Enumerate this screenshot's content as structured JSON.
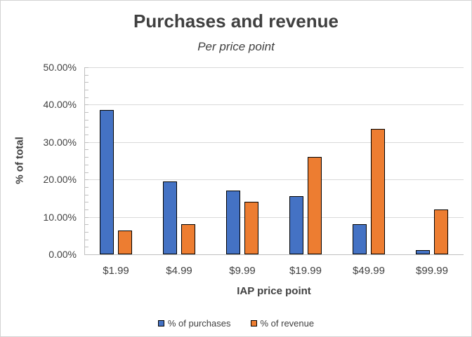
{
  "chart": {
    "title": "Purchases and revenue",
    "subtitle": "Per price point",
    "x_axis_title": "IAP price point",
    "y_axis_title": "% of total"
  },
  "chart_data": {
    "type": "bar",
    "title": "Purchases and revenue",
    "subtitle": "Per price point",
    "xlabel": "IAP price point",
    "ylabel": "% of total",
    "categories": [
      "$1.99",
      "$4.99",
      "$9.99",
      "$19.99",
      "$49.99",
      "$99.99"
    ],
    "series": [
      {
        "name": "% of purchases",
        "color": "#4472C4",
        "values": [
          38.5,
          19.5,
          17.0,
          15.5,
          8.0,
          1.2
        ]
      },
      {
        "name": "% of revenue",
        "color": "#ED7D31",
        "values": [
          6.4,
          8.0,
          14.0,
          26.0,
          33.5,
          12.0
        ]
      }
    ],
    "ylim": [
      0,
      50
    ],
    "y_ticks": [
      0,
      10,
      20,
      30,
      40,
      50
    ],
    "y_tick_labels": [
      "0.00%",
      "10.00%",
      "20.00%",
      "30.00%",
      "40.00%",
      "50.00%"
    ],
    "minor_tick_step": 2,
    "grid": true,
    "legend_position": "bottom"
  },
  "colors": {
    "bar_purchases": "#4472C4",
    "bar_revenue": "#ED7D31",
    "bar_border": "#000000",
    "gridline": "#D9D9D9",
    "axis_line": "#BFBFBF",
    "text": "#404040",
    "background": "#FFFFFF"
  }
}
